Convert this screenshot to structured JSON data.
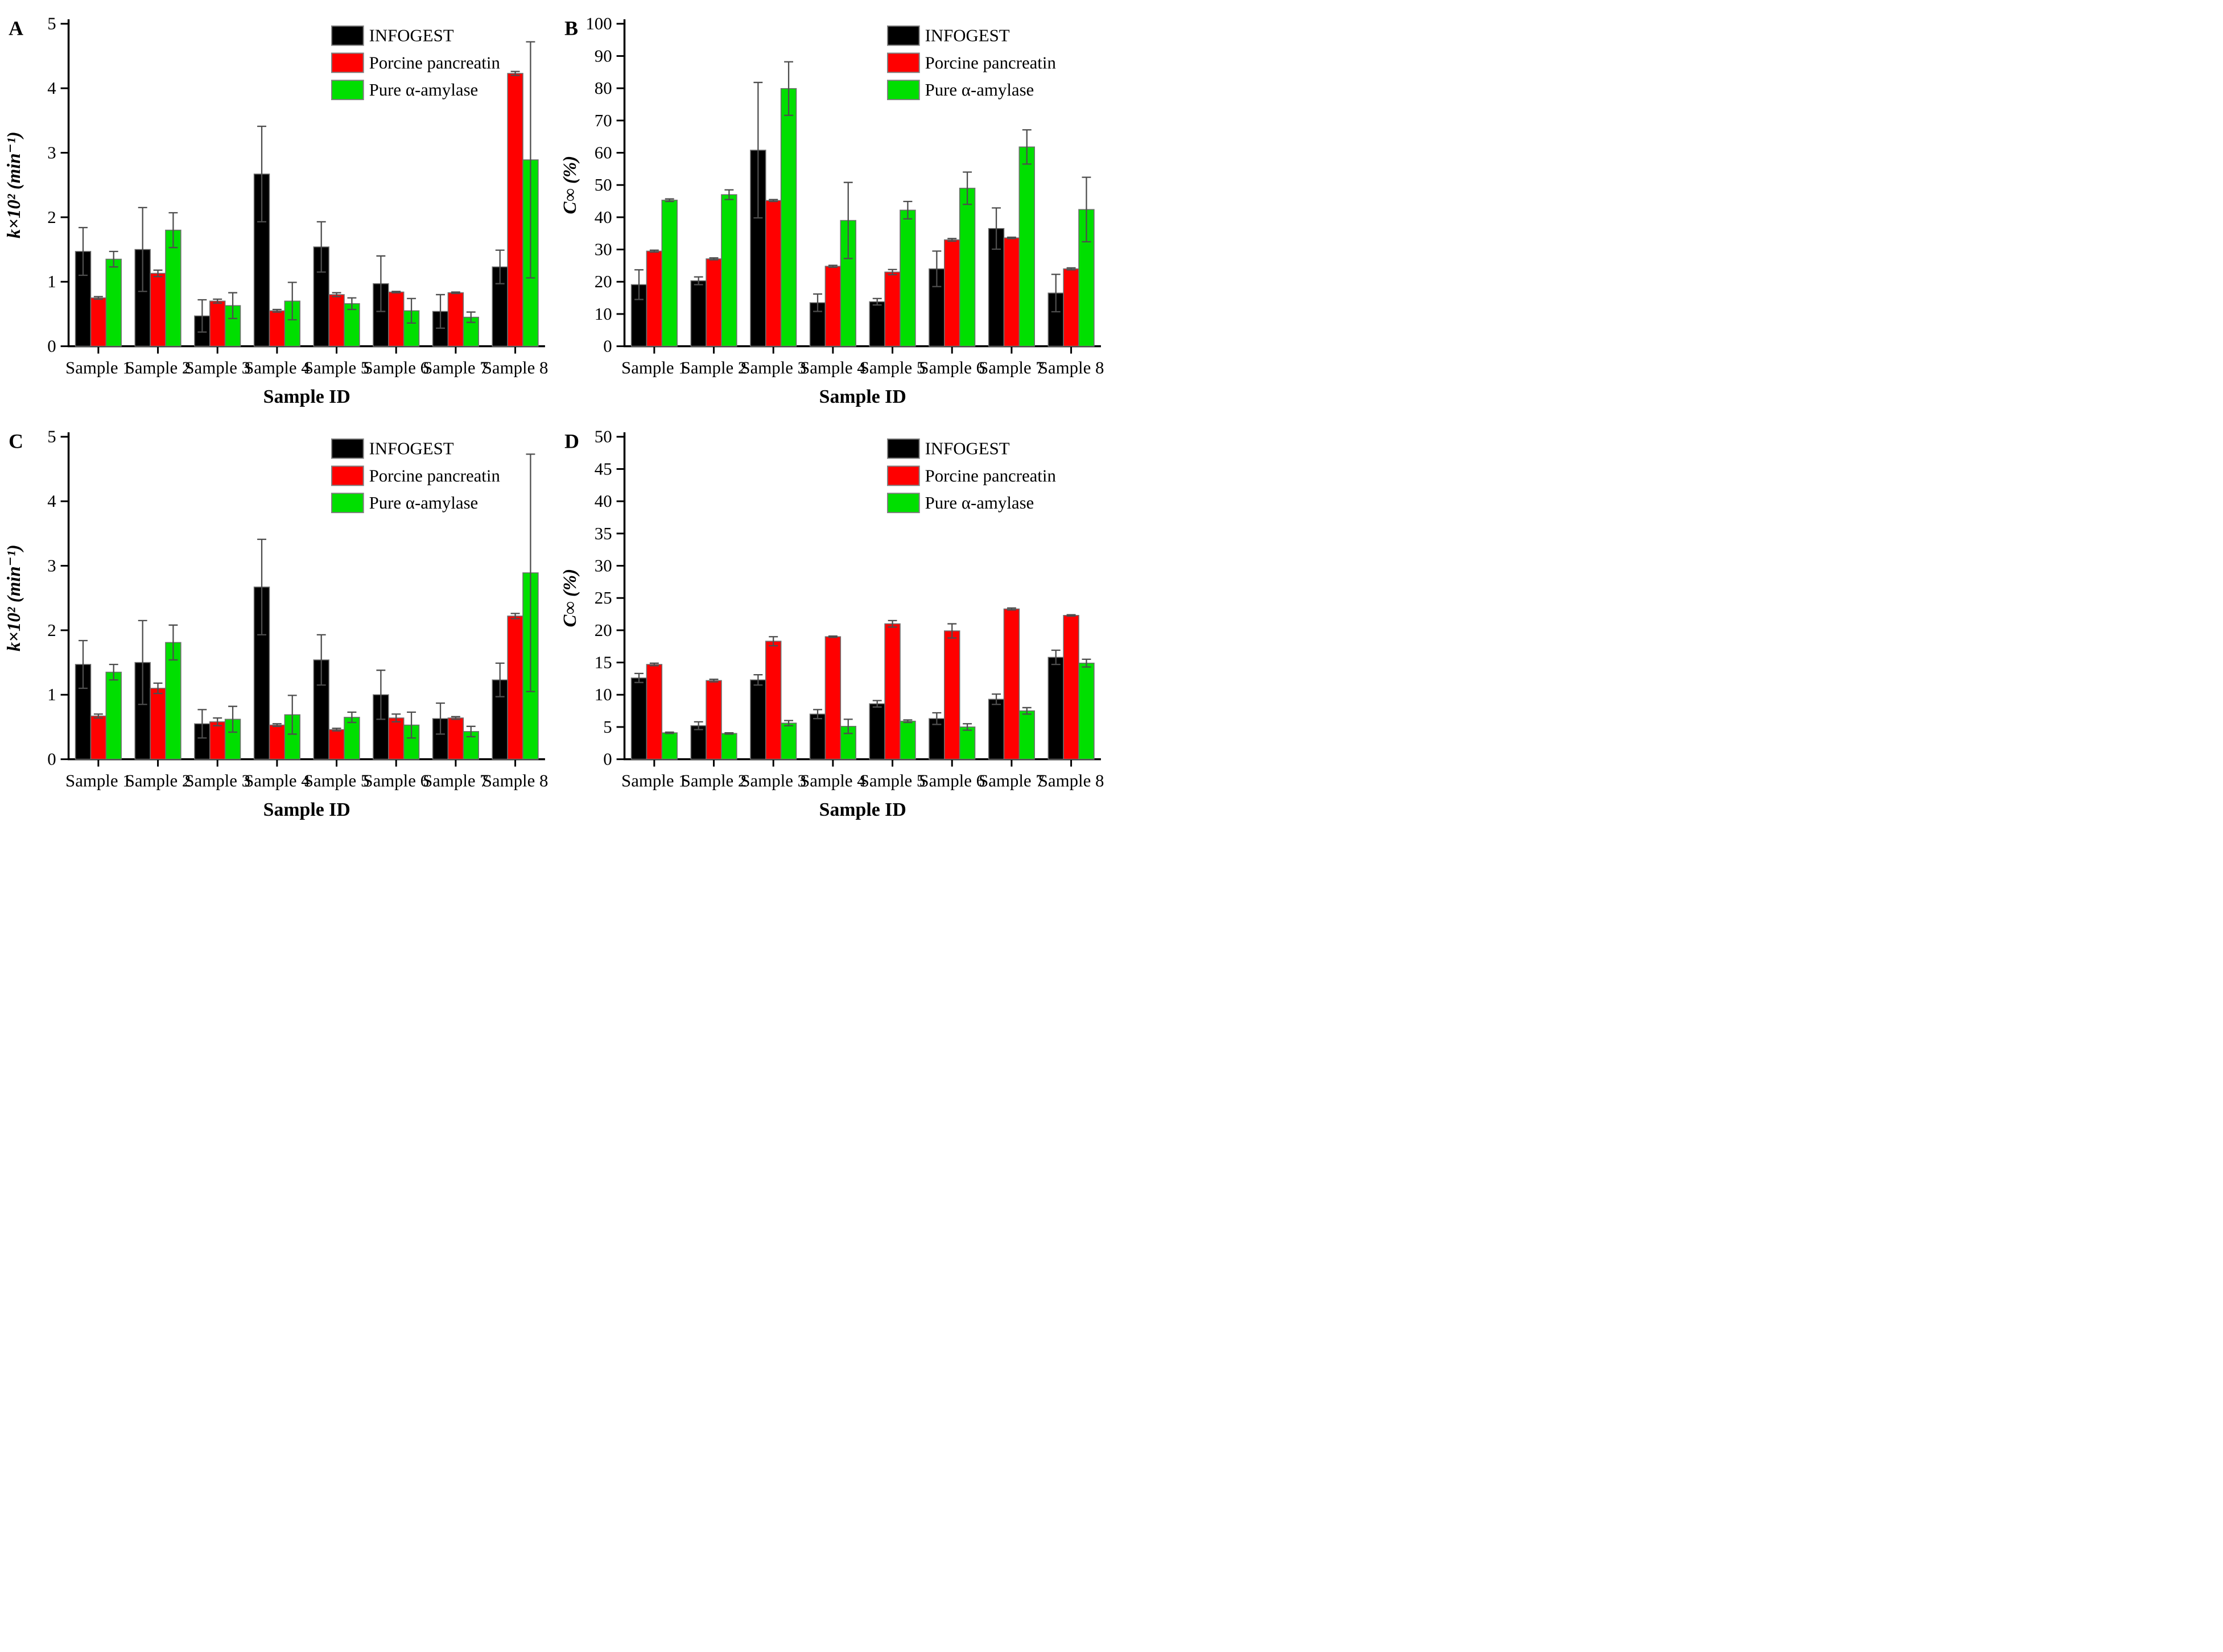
{
  "figure": {
    "xlabel": "Sample ID",
    "categories": [
      "Sample 1",
      "Sample 2",
      "Sample 3",
      "Sample 4",
      "Sample 5",
      "Sample 6",
      "Sample 7",
      "Sample 8"
    ],
    "legend": [
      "INFOGEST",
      "Porcine pancreatin",
      "Pure α-amylase"
    ],
    "colors": {
      "INFOGEST": "#000000",
      "Porcine pancreatin": "#ff0000",
      "Pure α-amylase": "#00df00"
    }
  },
  "chart_data": [
    {
      "type": "bar",
      "panel_label": "A",
      "title": "",
      "xlabel": "Sample ID",
      "ylabel": "k×10² (min⁻¹)",
      "ylim": [
        0,
        5
      ],
      "ytick_step": 1,
      "grid": false,
      "legend_position": "top-right-inside",
      "categories": [
        "Sample 1",
        "Sample 2",
        "Sample 3",
        "Sample 4",
        "Sample 5",
        "Sample 6",
        "Sample 7",
        "Sample 8"
      ],
      "series": [
        {
          "name": "INFOGEST",
          "color": "#000000",
          "values": [
            1.47,
            1.5,
            0.47,
            2.67,
            1.54,
            0.97,
            0.54,
            1.23
          ],
          "errors": [
            0.37,
            0.65,
            0.25,
            0.74,
            0.39,
            0.43,
            0.26,
            0.26
          ]
        },
        {
          "name": "Porcine pancreatin",
          "color": "#ff0000",
          "values": [
            0.75,
            1.13,
            0.7,
            0.55,
            0.8,
            0.84,
            0.83,
            4.23
          ],
          "errors": [
            0.02,
            0.05,
            0.03,
            0.02,
            0.03,
            0.01,
            0.01,
            0.03
          ]
        },
        {
          "name": "Pure α-amylase",
          "color": "#00df00",
          "values": [
            1.35,
            1.8,
            0.63,
            0.7,
            0.66,
            0.55,
            0.45,
            2.89
          ],
          "errors": [
            0.12,
            0.27,
            0.2,
            0.29,
            0.09,
            0.19,
            0.08,
            1.83
          ]
        }
      ]
    },
    {
      "type": "bar",
      "panel_label": "B",
      "title": "",
      "xlabel": "Sample ID",
      "ylabel": "C∞ (%)",
      "ylim": [
        0,
        100
      ],
      "ytick_step": 10,
      "grid": false,
      "legend_position": "top-right-inside",
      "categories": [
        "Sample 1",
        "Sample 2",
        "Sample 3",
        "Sample 4",
        "Sample 5",
        "Sample 6",
        "Sample 7",
        "Sample 8"
      ],
      "series": [
        {
          "name": "INFOGEST",
          "color": "#000000",
          "values": [
            19.1,
            20.3,
            60.8,
            13.5,
            13.8,
            24.0,
            36.5,
            16.5
          ],
          "errors": [
            4.6,
            1.2,
            21.0,
            2.7,
            1.0,
            5.5,
            6.4,
            5.8
          ]
        },
        {
          "name": "Porcine pancreatin",
          "color": "#ff0000",
          "values": [
            29.5,
            27.1,
            45.2,
            24.8,
            23.0,
            33.0,
            33.6,
            24.0
          ],
          "errors": [
            0.3,
            0.3,
            0.3,
            0.3,
            0.8,
            0.4,
            0.2,
            0.3
          ]
        },
        {
          "name": "Pure α-amylase",
          "color": "#00df00",
          "values": [
            45.3,
            47.0,
            79.9,
            39.0,
            42.2,
            49.0,
            61.8,
            42.4
          ],
          "errors": [
            0.4,
            1.5,
            8.3,
            11.8,
            2.7,
            5.0,
            5.3,
            10.0
          ]
        }
      ]
    },
    {
      "type": "bar",
      "panel_label": "C",
      "title": "",
      "xlabel": "Sample ID",
      "ylabel": "k×10² (min⁻¹)",
      "ylim": [
        0,
        5
      ],
      "ytick_step": 1,
      "grid": false,
      "legend_position": "top-right-inside",
      "categories": [
        "Sample 1",
        "Sample 2",
        "Sample 3",
        "Sample 4",
        "Sample 5",
        "Sample 6",
        "Sample 7",
        "Sample 8"
      ],
      "series": [
        {
          "name": "INFOGEST",
          "color": "#000000",
          "values": [
            1.47,
            1.5,
            0.55,
            2.67,
            1.54,
            1.0,
            0.63,
            1.23
          ],
          "errors": [
            0.37,
            0.65,
            0.22,
            0.74,
            0.39,
            0.38,
            0.24,
            0.26
          ]
        },
        {
          "name": "Porcine pancreatin",
          "color": "#ff0000",
          "values": [
            0.67,
            1.1,
            0.58,
            0.53,
            0.46,
            0.64,
            0.64,
            2.22
          ],
          "errors": [
            0.03,
            0.08,
            0.06,
            0.02,
            0.02,
            0.06,
            0.02,
            0.04
          ]
        },
        {
          "name": "Pure α-amylase",
          "color": "#00df00",
          "values": [
            1.35,
            1.81,
            0.62,
            0.69,
            0.65,
            0.53,
            0.43,
            2.89
          ],
          "errors": [
            0.12,
            0.27,
            0.2,
            0.3,
            0.08,
            0.2,
            0.08,
            1.84
          ]
        }
      ]
    },
    {
      "type": "bar",
      "panel_label": "D",
      "title": "",
      "xlabel": "Sample ID",
      "ylabel": "C∞ (%)",
      "ylim": [
        0,
        50
      ],
      "ytick_step": 5,
      "grid": false,
      "legend_position": "top-right-inside",
      "categories": [
        "Sample 1",
        "Sample 2",
        "Sample 3",
        "Sample 4",
        "Sample 5",
        "Sample 6",
        "Sample 7",
        "Sample 8"
      ],
      "series": [
        {
          "name": "INFOGEST",
          "color": "#000000",
          "values": [
            12.6,
            5.2,
            12.3,
            7.0,
            8.6,
            6.3,
            9.3,
            15.8
          ],
          "errors": [
            0.7,
            0.6,
            0.8,
            0.7,
            0.5,
            0.9,
            0.8,
            1.1
          ]
        },
        {
          "name": "Porcine pancreatin",
          "color": "#ff0000",
          "values": [
            14.7,
            12.2,
            18.3,
            19.0,
            21.0,
            19.9,
            23.3,
            22.3
          ],
          "errors": [
            0.2,
            0.2,
            0.7,
            0.1,
            0.5,
            1.1,
            0.15,
            0.1
          ]
        },
        {
          "name": "Pure α-amylase",
          "color": "#00df00",
          "values": [
            4.1,
            4.0,
            5.6,
            5.1,
            5.9,
            5.0,
            7.5,
            14.9
          ],
          "errors": [
            0.1,
            0.1,
            0.4,
            1.1,
            0.2,
            0.5,
            0.5,
            0.6
          ]
        }
      ]
    }
  ]
}
